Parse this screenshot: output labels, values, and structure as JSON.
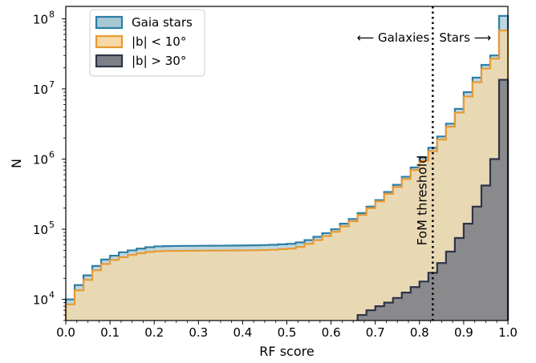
{
  "chart_data": {
    "type": "histogram",
    "xlabel": "RF score",
    "ylabel": "N",
    "xlim": [
      0.0,
      1.0
    ],
    "ylim": [
      5000,
      150000000
    ],
    "yscale": "log",
    "x_ticks": [
      "0.0",
      "0.1",
      "0.2",
      "0.3",
      "0.4",
      "0.5",
      "0.6",
      "0.7",
      "0.8",
      "0.9",
      "1.0"
    ],
    "y_ticks": [
      {
        "base": "10",
        "exp": "4",
        "value": 10000
      },
      {
        "base": "10",
        "exp": "5",
        "value": 100000
      },
      {
        "base": "10",
        "exp": "6",
        "value": 1000000
      },
      {
        "base": "10",
        "exp": "7",
        "value": 10000000
      },
      {
        "base": "10",
        "exp": "8",
        "value": 100000000
      }
    ],
    "bin_width": 0.02,
    "bin_starts": [
      0.0,
      0.02,
      0.04,
      0.06,
      0.08,
      0.1,
      0.12,
      0.14,
      0.16,
      0.18,
      0.2,
      0.22,
      0.24,
      0.26,
      0.28,
      0.3,
      0.32,
      0.34,
      0.36,
      0.38,
      0.4,
      0.42,
      0.44,
      0.46,
      0.48,
      0.5,
      0.52,
      0.54,
      0.56,
      0.58,
      0.6,
      0.62,
      0.64,
      0.66,
      0.68,
      0.7,
      0.72,
      0.74,
      0.76,
      0.78,
      0.8,
      0.82,
      0.84,
      0.86,
      0.88,
      0.9,
      0.92,
      0.94,
      0.96,
      0.98
    ],
    "series": [
      {
        "name": "Gaia stars",
        "fill": "#a8c8d4",
        "stroke": "#2d7fa6",
        "values": [
          10000,
          16000,
          22000,
          30000,
          37000,
          42000,
          47000,
          50000,
          53000,
          55500,
          57000,
          57500,
          57800,
          58000,
          58000,
          58200,
          58300,
          58400,
          58500,
          58600,
          58800,
          59000,
          59500,
          60000,
          61000,
          62000,
          65000,
          70000,
          78000,
          88000,
          100000,
          120000,
          140000,
          170000,
          210000,
          260000,
          340000,
          430000,
          560000,
          760000,
          1050000,
          1450000,
          2100000,
          3200000,
          5200000,
          9000000,
          14500000,
          22000000,
          30000000,
          110000000
        ]
      },
      {
        "name": "|b| < 10°",
        "fill": "#f5d9a6",
        "stroke": "#e89a35",
        "values": [
          8500,
          13500,
          19000,
          26000,
          32000,
          36500,
          40000,
          43000,
          45500,
          47500,
          48500,
          49000,
          49200,
          49300,
          49400,
          49500,
          49600,
          49700,
          49800,
          49900,
          50000,
          50200,
          50500,
          51000,
          52000,
          53000,
          56000,
          62000,
          70000,
          80000,
          92000,
          110000,
          130000,
          160000,
          200000,
          250000,
          320000,
          400000,
          520000,
          700000,
          950000,
          1300000,
          1900000,
          2900000,
          4600000,
          7800000,
          12500000,
          19500000,
          27000000,
          68000000
        ]
      },
      {
        "name": "|b| > 30°",
        "fill": "#7f7f87",
        "stroke": "#2e3448",
        "values": [
          null,
          null,
          null,
          null,
          null,
          null,
          null,
          null,
          null,
          null,
          null,
          null,
          null,
          null,
          null,
          null,
          null,
          null,
          null,
          null,
          null,
          null,
          null,
          null,
          null,
          null,
          null,
          null,
          null,
          null,
          null,
          null,
          null,
          6000,
          7000,
          8000,
          9000,
          10500,
          12500,
          15000,
          18000,
          24000,
          33000,
          48000,
          75000,
          120000,
          210000,
          420000,
          1000000,
          13500000
        ]
      }
    ],
    "threshold": {
      "x": 0.83,
      "label": "FoM threshold"
    },
    "annotations": {
      "left": "⟵ Galaxies",
      "right": "Stars ⟶"
    },
    "legend_position": "upper left"
  }
}
